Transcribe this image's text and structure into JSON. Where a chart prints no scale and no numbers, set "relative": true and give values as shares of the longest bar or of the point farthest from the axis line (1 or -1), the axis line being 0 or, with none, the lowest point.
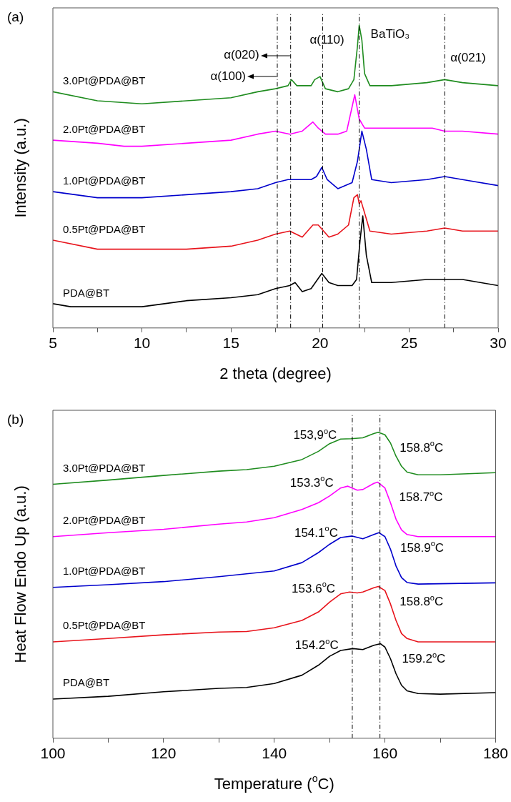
{
  "chart_data": [
    {
      "type": "line",
      "title": "(a)",
      "xlabel": "2 theta (degree)",
      "ylabel": "Intensity (a.u.)",
      "relative": true,
      "marker": "none",
      "grid": false,
      "xlim": [
        5,
        30
      ],
      "xticks": [
        5,
        {
          "value": 7.5,
          "label": null
        },
        10,
        {
          "value": 12.5,
          "label": null
        },
        15,
        {
          "value": 17.5,
          "label": null
        },
        20,
        {
          "value": 22.5,
          "label": null
        },
        25,
        {
          "value": 27.5,
          "label": null
        },
        30
      ],
      "series": [
        {
          "name": "3.0Pt@PDA@BT",
          "color": "#1f8c1f",
          "x": [
            5,
            7.5,
            10,
            12.5,
            15,
            16.5,
            17.5,
            18.2,
            18.4,
            18.7,
            19.5,
            19.7,
            20,
            20.3,
            21,
            21.6,
            21.9,
            22.1,
            22.2,
            22.35,
            22.5,
            22.8,
            24,
            26,
            27,
            28,
            30
          ],
          "values": [
            0.78,
            0.75,
            0.74,
            0.75,
            0.76,
            0.78,
            0.79,
            0.8,
            0.82,
            0.8,
            0.8,
            0.82,
            0.83,
            0.79,
            0.78,
            0.79,
            0.82,
            0.93,
            1,
            0.95,
            0.84,
            0.8,
            0.8,
            0.81,
            0.82,
            0.81,
            0.8
          ]
        },
        {
          "name": "2.0Pt@PDA@BT",
          "color": "#ff00ff",
          "x": [
            5,
            7.5,
            9,
            10,
            12.5,
            15,
            16.5,
            17.5,
            18.3,
            19,
            19.6,
            19.9,
            20.3,
            21,
            21.5,
            21.8,
            21.95,
            22.2,
            22.5,
            23,
            25,
            26.3,
            27,
            28,
            30
          ],
          "values": [
            0.62,
            0.61,
            0.6,
            0.6,
            0.61,
            0.62,
            0.64,
            0.65,
            0.64,
            0.65,
            0.68,
            0.66,
            0.64,
            0.64,
            0.65,
            0.73,
            0.77,
            0.69,
            0.66,
            0.66,
            0.66,
            0.66,
            0.65,
            0.65,
            0.64
          ]
        },
        {
          "name": "1.0Pt@PDA@BT",
          "color": "#0000cc",
          "x": [
            5,
            7.5,
            10,
            12.5,
            15,
            16.5,
            17.5,
            18.2,
            18.7,
            19.5,
            19.8,
            20.1,
            20.4,
            21,
            21.8,
            22.1,
            22.35,
            22.6,
            22.9,
            24,
            26,
            27,
            28,
            30
          ],
          "values": [
            0.45,
            0.43,
            0.43,
            0.44,
            0.45,
            0.46,
            0.48,
            0.49,
            0.49,
            0.49,
            0.5,
            0.53,
            0.49,
            0.46,
            0.48,
            0.55,
            0.65,
            0.59,
            0.49,
            0.48,
            0.49,
            0.5,
            0.49,
            0.47
          ]
        },
        {
          "name": "0.5Pt@PDA@BT",
          "color": "#e8141c",
          "x": [
            5,
            7.5,
            10,
            12.5,
            15,
            16.5,
            17.5,
            18.3,
            19,
            19.6,
            19.9,
            20.5,
            21,
            21.6,
            21.9,
            22.1,
            22.2,
            22.3,
            22.5,
            22.8,
            24,
            26,
            27,
            28,
            30
          ],
          "values": [
            0.29,
            0.26,
            0.26,
            0.26,
            0.27,
            0.29,
            0.31,
            0.32,
            0.3,
            0.34,
            0.34,
            0.3,
            0.31,
            0.34,
            0.43,
            0.44,
            0.41,
            0.42,
            0.38,
            0.32,
            0.31,
            0.32,
            0.33,
            0.32,
            0.32
          ]
        },
        {
          "name": "PDA@BT",
          "color": "#000000",
          "x": [
            5,
            6,
            7.5,
            10,
            12.5,
            15,
            16.5,
            17.5,
            18.3,
            18.6,
            19,
            19.5,
            20.1,
            20.5,
            21,
            21.8,
            22.05,
            22.25,
            22.4,
            22.6,
            22.9,
            24,
            26,
            27,
            28,
            30
          ],
          "values": [
            0.08,
            0.07,
            0.07,
            0.07,
            0.09,
            0.1,
            0.11,
            0.13,
            0.14,
            0.15,
            0.12,
            0.13,
            0.18,
            0.15,
            0.14,
            0.14,
            0.16,
            0.29,
            0.37,
            0.24,
            0.15,
            0.15,
            0.16,
            0.16,
            0.16,
            0.14
          ]
        }
      ],
      "ref_lines": [
        {
          "axis": "x",
          "value": 17.6,
          "color": "#000000",
          "line_style": "dashed"
        },
        {
          "axis": "x",
          "value": 18.35,
          "color": "#000000",
          "line_style": "dashed"
        },
        {
          "axis": "x",
          "value": 20.15,
          "color": "#000000",
          "line_style": "dashed"
        },
        {
          "axis": "x",
          "value": 22.2,
          "color": "#000000",
          "line_style": "dashed"
        },
        {
          "axis": "x",
          "value": 27,
          "color": "#000000",
          "line_style": "dashed"
        }
      ],
      "annotations": [
        {
          "text": "α(100)",
          "x": 17.6,
          "y": 0.83
        },
        {
          "text": "α(020)",
          "x": 18.35,
          "y": 0.9
        },
        {
          "text": "α(110)",
          "x": 20.15,
          "y": 0.95
        },
        {
          "text": "BaTiO₃",
          "x": 22.2,
          "y": 0.97
        },
        {
          "text": "α(021)",
          "x": 27,
          "y": 0.89
        }
      ]
    },
    {
      "type": "line",
      "title": "(b)",
      "xlabel": "Temperature ($^{o}$C)",
      "ylabel": "Heat Flow Endo Up (a.u.)",
      "relative": true,
      "marker": "none",
      "grid": false,
      "xlim": [
        100,
        180
      ],
      "xticks": [
        100,
        {
          "value": 110,
          "label": null
        },
        120,
        {
          "value": 130,
          "label": null
        },
        140,
        {
          "value": 150,
          "label": null
        },
        160,
        {
          "value": 170,
          "label": null
        },
        180
      ],
      "series": [
        {
          "name": "3.0Pt@PDA@BT",
          "color": "#1f8c1f",
          "x": [
            100,
            110,
            120,
            130,
            135,
            140,
            145,
            148,
            150,
            152,
            153.9,
            156,
            158,
            158.8,
            160,
            161,
            162,
            163,
            164,
            166,
            170,
            180
          ],
          "values": [
            0.83,
            0.844,
            0.859,
            0.873,
            0.878,
            0.889,
            0.911,
            0.938,
            0.963,
            0.978,
            0.979,
            0.982,
            0.996,
            1,
            0.992,
            0.965,
            0.922,
            0.889,
            0.87,
            0.861,
            0.861,
            0.868
          ]
        },
        {
          "name": "2.0Pt@PDA@BT",
          "color": "#ff00ff",
          "x": [
            100,
            110,
            120,
            130,
            135,
            140,
            145,
            148,
            150,
            152,
            153.3,
            155,
            156,
            158,
            158.7,
            160,
            161,
            162,
            163,
            164,
            166,
            180
          ],
          "values": [
            0.659,
            0.672,
            0.683,
            0.7,
            0.707,
            0.721,
            0.748,
            0.77,
            0.792,
            0.818,
            0.824,
            0.811,
            0.813,
            0.833,
            0.837,
            0.818,
            0.77,
            0.716,
            0.681,
            0.666,
            0.659,
            0.659
          ]
        },
        {
          "name": "1.0Pt@PDA@BT",
          "color": "#0000cc",
          "x": [
            100,
            110,
            120,
            130,
            140,
            145,
            148,
            150,
            152,
            154.1,
            156,
            158,
            158.9,
            160,
            161,
            162,
            163,
            164,
            166,
            180
          ],
          "values": [
            0.493,
            0.502,
            0.512,
            0.528,
            0.547,
            0.574,
            0.607,
            0.634,
            0.656,
            0.661,
            0.652,
            0.666,
            0.672,
            0.659,
            0.618,
            0.563,
            0.525,
            0.509,
            0.504,
            0.508
          ]
        },
        {
          "name": "0.5Pt@PDA@BT",
          "color": "#e8141c",
          "x": [
            100,
            110,
            120,
            130,
            135,
            140,
            145,
            148,
            150,
            152,
            153.6,
            155,
            156,
            158,
            158.8,
            160,
            161,
            162,
            163,
            164,
            166,
            180
          ],
          "values": [
            0.315,
            0.326,
            0.338,
            0.347,
            0.349,
            0.361,
            0.385,
            0.413,
            0.445,
            0.472,
            0.478,
            0.475,
            0.478,
            0.492,
            0.496,
            0.483,
            0.439,
            0.385,
            0.342,
            0.326,
            0.315,
            0.315
          ]
        },
        {
          "name": "PDA@BT",
          "color": "#000000",
          "x": [
            100,
            110,
            120,
            130,
            135,
            140,
            145,
            148,
            150,
            152,
            154.2,
            156,
            158,
            159.2,
            160,
            161,
            162,
            163,
            164,
            166,
            170,
            180
          ],
          "values": [
            0.128,
            0.137,
            0.152,
            0.163,
            0.166,
            0.179,
            0.206,
            0.239,
            0.268,
            0.287,
            0.293,
            0.29,
            0.304,
            0.309,
            0.298,
            0.26,
            0.211,
            0.173,
            0.155,
            0.146,
            0.144,
            0.149
          ]
        }
      ],
      "ref_lines": [
        {
          "axis": "x",
          "value": 154.1,
          "color": "#000000",
          "line_style": "dashed"
        },
        {
          "axis": "x",
          "value": 159.1,
          "color": "#000000",
          "line_style": "dashed"
        }
      ],
      "annotations": [
        {
          "text": "153,9$^{o}$C",
          "x": 153.9,
          "y": 0.979
        },
        {
          "text": "158.8$^{o}$C",
          "x": 158.8,
          "y": 1
        },
        {
          "text": "153.3$^{o}$C",
          "x": 153.3,
          "y": 0.824
        },
        {
          "text": "158.7$^{o}$C",
          "x": 158.7,
          "y": 0.837
        },
        {
          "text": "154.1$^{o}$C",
          "x": 154.1,
          "y": 0.661
        },
        {
          "text": "158.9$^{o}$C",
          "x": 158.9,
          "y": 0.672
        },
        {
          "text": "153.6$^{o}$C",
          "x": 153.6,
          "y": 0.478
        },
        {
          "text": "158.8$^{o}$C",
          "x": 158.8,
          "y": 0.496
        },
        {
          "text": "154.2$^{o}$C",
          "x": 154.2,
          "y": 0.293
        },
        {
          "text": "159.2$^{o}$C",
          "x": 159.2,
          "y": 0.309
        }
      ]
    }
  ]
}
